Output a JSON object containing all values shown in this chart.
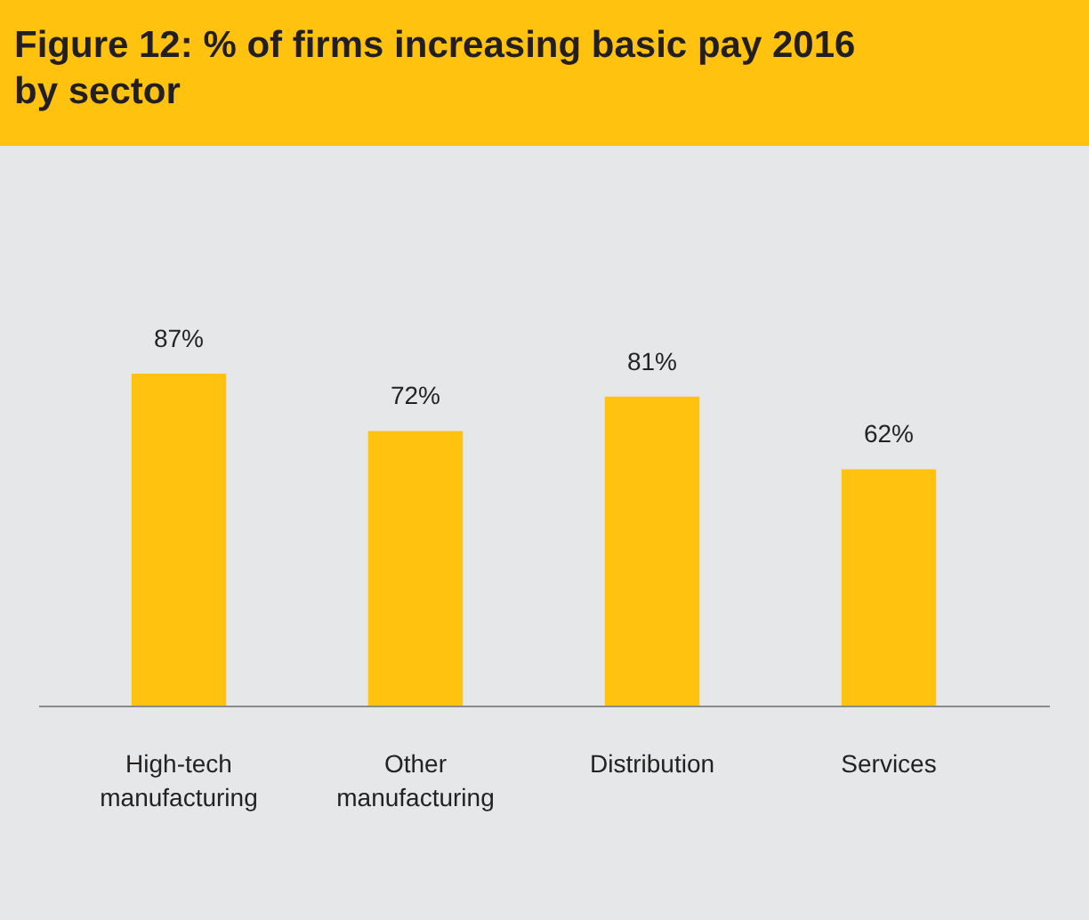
{
  "chart_data": {
    "type": "bar",
    "title": "Figure 12: % of firms increasing basic pay 2016 by sector",
    "categories": [
      "High-tech manufacturing",
      "Other manufacturing",
      "Distribution",
      "Services"
    ],
    "values": [
      87,
      72,
      81,
      62
    ],
    "value_labels": [
      "87%",
      "72%",
      "81%",
      "62%"
    ],
    "color": "#ffc20e"
  }
}
